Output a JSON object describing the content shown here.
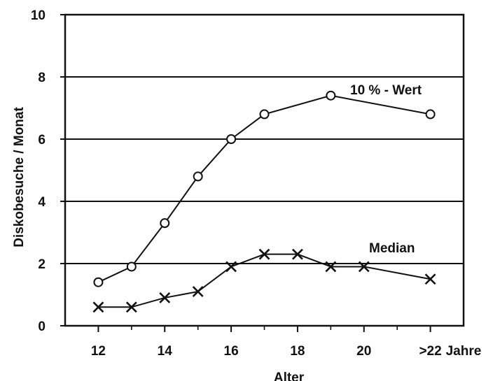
{
  "chart_data": {
    "type": "line",
    "title": "",
    "xlabel": "Alter",
    "ylabel": "Diskobesuche / Monat",
    "x_unit_label": "Jahre",
    "xlim": [
      11,
      23
    ],
    "ylim": [
      0,
      10
    ],
    "yticks": [
      0,
      2,
      4,
      6,
      8,
      10
    ],
    "xticks": [
      {
        "x": 12,
        "label": "12"
      },
      {
        "x": 14,
        "label": "14"
      },
      {
        "x": 16,
        "label": "16"
      },
      {
        "x": 18,
        "label": "18"
      },
      {
        "x": 20,
        "label": "20"
      },
      {
        "x": 22,
        "label": ">22"
      }
    ],
    "minor_xticks": [
      13,
      15,
      17,
      19,
      21
    ],
    "grid": "horizontal",
    "series": [
      {
        "name": "10 % - Wert",
        "marker": "circle",
        "points": [
          [
            12,
            1.4
          ],
          [
            13,
            1.9
          ],
          [
            14,
            3.3
          ],
          [
            15,
            4.8
          ],
          [
            16,
            6.0
          ],
          [
            17,
            6.8
          ],
          [
            19,
            7.4
          ],
          [
            22,
            6.8
          ]
        ]
      },
      {
        "name": "Median",
        "marker": "x",
        "points": [
          [
            12,
            0.6
          ],
          [
            13,
            0.6
          ],
          [
            14,
            0.9
          ],
          [
            15,
            1.1
          ],
          [
            16,
            1.9
          ],
          [
            17,
            2.3
          ],
          [
            18,
            2.3
          ],
          [
            19,
            1.9
          ],
          [
            20,
            1.9
          ],
          [
            22,
            1.5
          ]
        ]
      }
    ]
  }
}
